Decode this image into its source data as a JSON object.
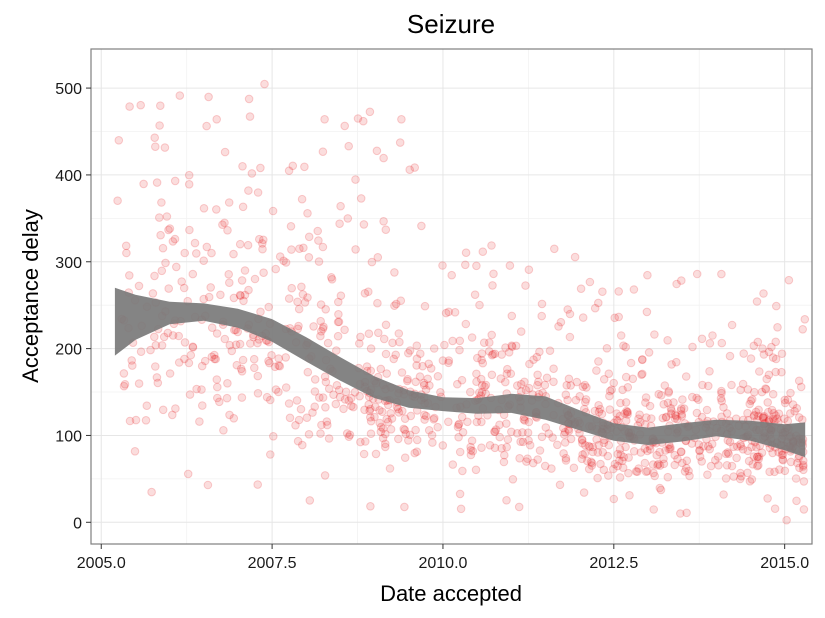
{
  "chart_data": {
    "type": "scatter",
    "title": "Seizure",
    "xlabel": "Date accepted",
    "ylabel": "Acceptance delay",
    "xlim": [
      2004.85,
      2015.4
    ],
    "ylim": [
      -25,
      545
    ],
    "x_ticks": [
      2005.0,
      2007.5,
      2010.0,
      2012.5,
      2015.0
    ],
    "x_tick_labels": [
      "2005.0",
      "2007.5",
      "2010.0",
      "2012.5",
      "2015.0"
    ],
    "y_ticks": [
      0,
      100,
      200,
      300,
      400,
      500
    ],
    "y_tick_labels": [
      "0",
      "100",
      "200",
      "300",
      "400",
      "500"
    ],
    "grid": true,
    "point_color": "#e41a1c",
    "point_opacity": 0.15,
    "band_color": "#7a7a7a",
    "point_count": 1200,
    "density_profile": [
      {
        "year_from": 2005.2,
        "year_to": 2007.5,
        "typical_range": [
          20,
          520
        ]
      },
      {
        "year_from": 2007.5,
        "year_to": 2010.0,
        "typical_range": [
          10,
          480
        ]
      },
      {
        "year_from": 2010.0,
        "year_to": 2012.5,
        "typical_range": [
          0,
          330
        ]
      },
      {
        "year_from": 2012.5,
        "year_to": 2015.3,
        "typical_range": [
          0,
          290
        ]
      }
    ],
    "smooth": {
      "x": [
        2005.2,
        2005.5,
        2006.0,
        2006.5,
        2007.0,
        2007.5,
        2008.0,
        2008.5,
        2009.0,
        2009.5,
        2010.0,
        2010.5,
        2011.0,
        2011.5,
        2012.0,
        2012.5,
        2013.0,
        2013.5,
        2014.0,
        2014.5,
        2015.0,
        2015.3
      ],
      "upper": [
        270,
        262,
        254,
        252,
        246,
        234,
        213,
        190,
        168,
        152,
        144,
        143,
        148,
        145,
        129,
        114,
        109,
        114,
        118,
        117,
        113,
        115
      ],
      "lower": [
        192,
        210,
        228,
        232,
        224,
        208,
        185,
        163,
        143,
        132,
        128,
        125,
        126,
        118,
        106,
        94,
        89,
        93,
        99,
        94,
        83,
        75
      ]
    }
  }
}
